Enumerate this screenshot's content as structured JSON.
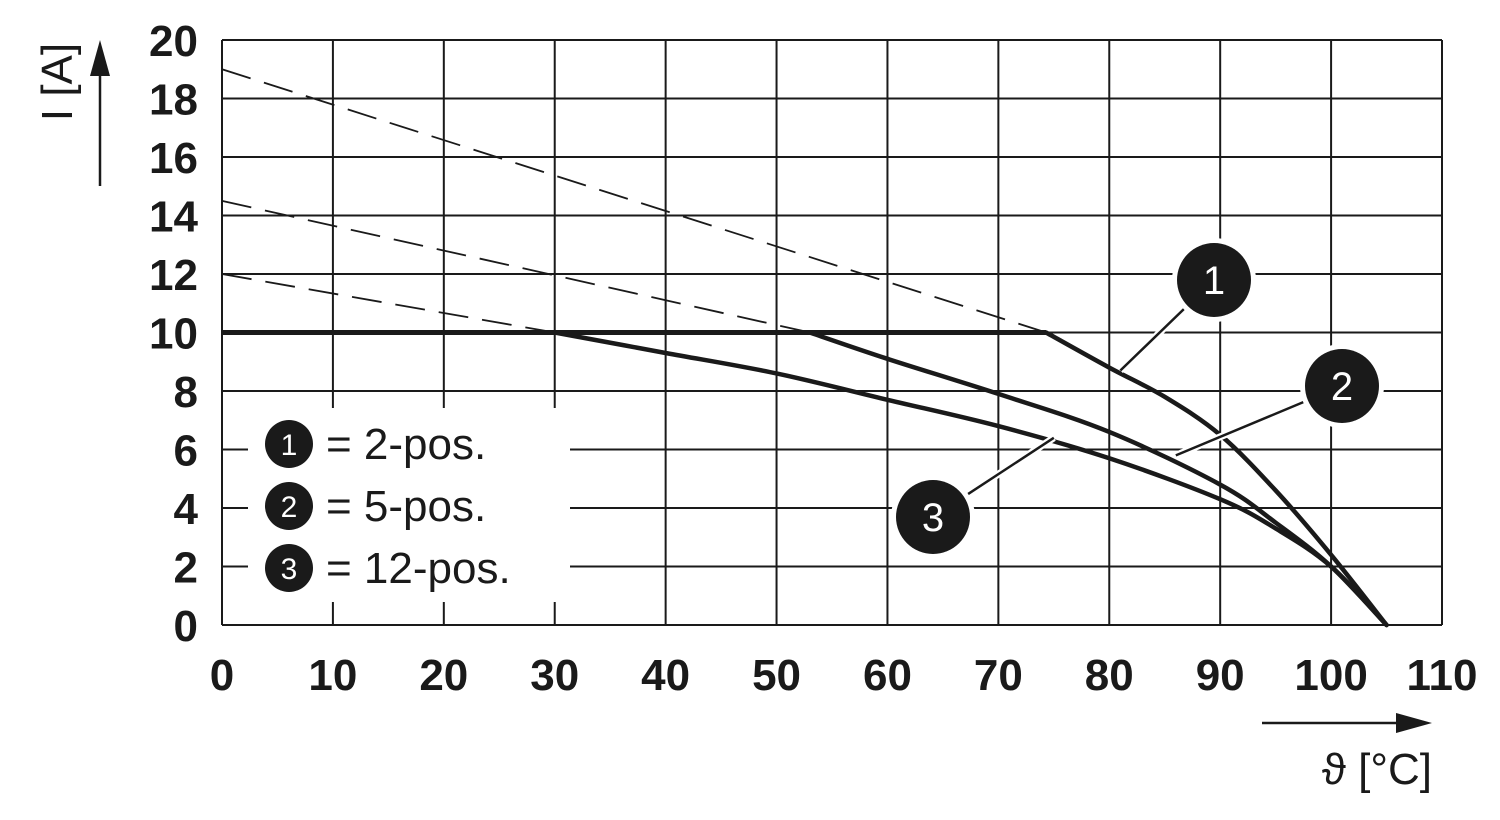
{
  "chart_data": {
    "type": "line",
    "xlabel": "ϑ [°C]",
    "ylabel": "I [A]",
    "xlim": [
      0,
      110
    ],
    "ylim": [
      0,
      20
    ],
    "x_ticks": [
      "0",
      "10",
      "20",
      "30",
      "40",
      "50",
      "60",
      "70",
      "80",
      "90",
      "100",
      "110"
    ],
    "y_ticks": [
      "0",
      "2",
      "4",
      "6",
      "8",
      "10",
      "12",
      "14",
      "16",
      "18",
      "20"
    ],
    "grid": true,
    "legend_placement": "bottom-left",
    "legend": [
      {
        "badge": "1",
        "label": "= 2-pos."
      },
      {
        "badge": "2",
        "label": "= 5-pos."
      },
      {
        "badge": "3",
        "label": "= 12-pos."
      }
    ],
    "series": [
      {
        "badge": "1",
        "derating": [
          [
            0,
            10
          ],
          [
            74.3,
            10
          ],
          [
            80,
            8.8
          ],
          [
            85,
            7.8
          ],
          [
            90,
            6.5
          ],
          [
            95,
            4.6
          ],
          [
            100,
            2.4
          ],
          [
            105,
            0
          ]
        ],
        "theoretical_dashed": [
          [
            0,
            19
          ],
          [
            74.3,
            10
          ]
        ]
      },
      {
        "badge": "2",
        "derating": [
          [
            0,
            10
          ],
          [
            53,
            10
          ],
          [
            60,
            9.1
          ],
          [
            70,
            7.9
          ],
          [
            80,
            6.6
          ],
          [
            90,
            4.8
          ],
          [
            95,
            3.5
          ],
          [
            100,
            2.0
          ],
          [
            105,
            0
          ]
        ],
        "theoretical_dashed": [
          [
            0,
            14.5
          ],
          [
            53,
            10
          ]
        ]
      },
      {
        "badge": "3",
        "derating": [
          [
            0,
            10
          ],
          [
            30,
            10
          ],
          [
            40,
            9.3
          ],
          [
            50,
            8.6
          ],
          [
            60,
            7.7
          ],
          [
            70,
            6.8
          ],
          [
            80,
            5.7
          ],
          [
            90,
            4.3
          ],
          [
            95,
            3.3
          ],
          [
            100,
            2.0
          ],
          [
            105,
            0
          ]
        ],
        "theoretical_dashed": [
          [
            0,
            12
          ],
          [
            30,
            10
          ]
        ]
      }
    ],
    "plateau_current": 10,
    "callouts": [
      {
        "badge": "1",
        "target": [
          81,
          8.7
        ]
      },
      {
        "badge": "2",
        "target": [
          86,
          5.8
        ]
      },
      {
        "badge": "3",
        "target": [
          75,
          6.4
        ]
      }
    ]
  }
}
